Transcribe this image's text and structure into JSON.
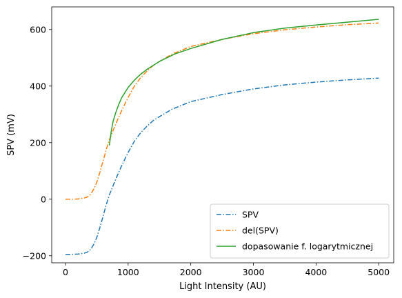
{
  "chart_data": {
    "type": "line",
    "xlabel": "Light Intensity (AU)",
    "ylabel": "SPV (mV)",
    "xlim": [
      -220,
      5240
    ],
    "ylim": [
      -225,
      680
    ],
    "xticks": [
      0,
      1000,
      2000,
      3000,
      4000,
      5000
    ],
    "yticks": [
      -200,
      0,
      200,
      400,
      600
    ],
    "xtick_labels": [
      "0",
      "1000",
      "2000",
      "3000",
      "4000",
      "5000"
    ],
    "ytick_labels": [
      "−200",
      "0",
      "200",
      "400",
      "600"
    ],
    "legend_position": "lower right",
    "grid": false,
    "series": [
      {
        "name": "SPV",
        "color": "#1f77b4",
        "style": "dashdot",
        "x": [
          0,
          100,
          200,
          300,
          350,
          400,
          450,
          500,
          550,
          600,
          650,
          700,
          800,
          900,
          1000,
          1100,
          1200,
          1300,
          1400,
          1500,
          1700,
          2000,
          2500,
          3000,
          3500,
          4000,
          4500,
          5000
        ],
        "y": [
          -195,
          -195,
          -194,
          -191,
          -187,
          -178,
          -160,
          -135,
          -100,
          -60,
          -20,
          15,
          70,
          120,
          165,
          205,
          235,
          258,
          278,
          292,
          318,
          345,
          370,
          390,
          404,
          414,
          422,
          428
        ]
      },
      {
        "name": "del(SPV)",
        "color": "#ff7f0e",
        "style": "dashdot",
        "x": [
          0,
          100,
          200,
          300,
          350,
          400,
          450,
          500,
          550,
          600,
          650,
          700,
          800,
          900,
          1000,
          1100,
          1200,
          1300,
          1400,
          1500,
          1700,
          2000,
          2500,
          3000,
          3500,
          4000,
          4500,
          5000
        ],
        "y": [
          0,
          0,
          1,
          4,
          8,
          17,
          35,
          60,
          95,
          135,
          175,
          210,
          265,
          315,
          360,
          400,
          430,
          453,
          473,
          487,
          513,
          540,
          565,
          585,
          599,
          609,
          617,
          623
        ]
      },
      {
        "name": "dopasowanie f. logarytmicznej",
        "color": "#2ca02c",
        "style": "solid",
        "x": [
          700,
          730,
          760,
          800,
          850,
          900,
          1000,
          1100,
          1200,
          1300,
          1500,
          1750,
          2000,
          2500,
          3000,
          3500,
          4000,
          4500,
          5000
        ],
        "y": [
          190,
          240,
          275,
          305,
          335,
          360,
          395,
          421,
          442,
          459,
          487,
          514,
          533,
          565,
          589,
          605,
          616,
          626,
          636
        ]
      }
    ]
  }
}
